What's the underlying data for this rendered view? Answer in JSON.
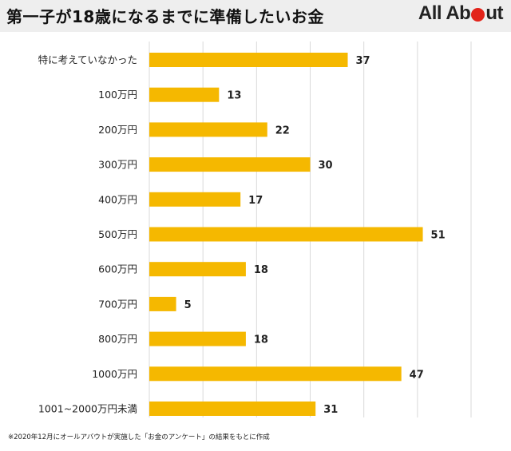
{
  "header": {
    "title": "第一子が18歳になるまでに準備したいお金",
    "logo_text_left": "All Ab",
    "logo_text_right": "ut"
  },
  "footnote": "※2020年12月にオールアバウトが実施した「お金のアンケート」の結果をもとに作成",
  "colors": {
    "bar": "#f5b800",
    "grid": "#d9d9d9",
    "logo_accent": "#e2231a"
  },
  "chart_data": {
    "type": "bar",
    "orientation": "horizontal",
    "categories": [
      "特に考えていなかった",
      "100万円",
      "200万円",
      "300万円",
      "400万円",
      "500万円",
      "600万円",
      "700万円",
      "800万円",
      "1000万円",
      "1001~2000万円未満"
    ],
    "values": [
      37,
      13,
      22,
      30,
      17,
      51,
      18,
      5,
      18,
      47,
      31
    ],
    "xlim": [
      0,
      60
    ],
    "grid": true,
    "title": "",
    "xlabel": "",
    "ylabel": ""
  }
}
